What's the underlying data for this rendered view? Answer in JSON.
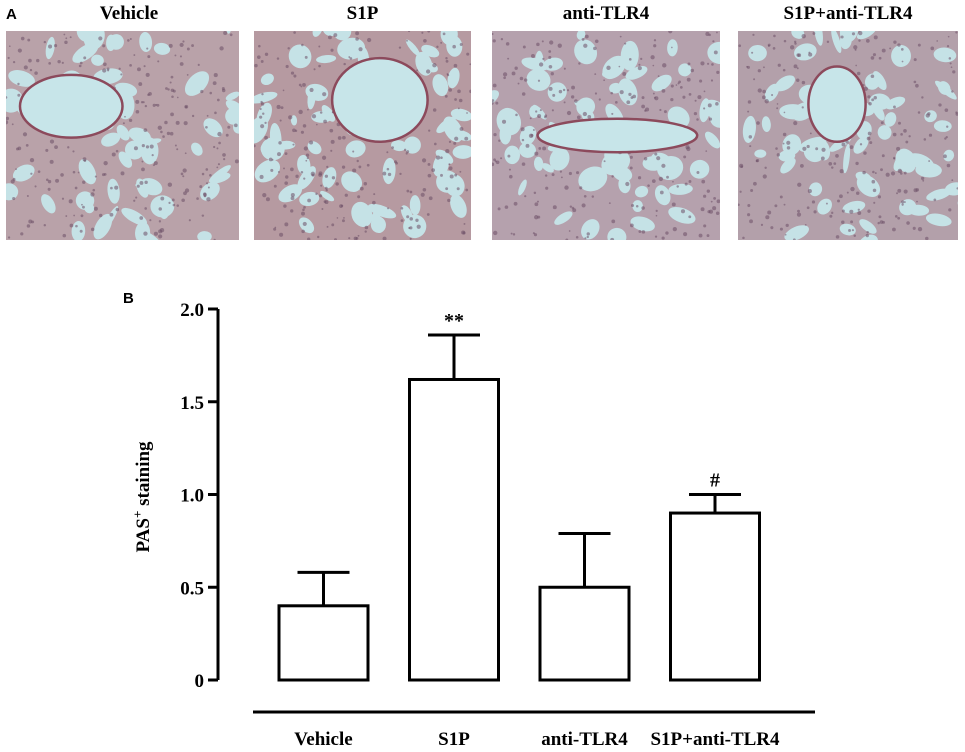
{
  "panel_a": {
    "letter": "A",
    "images": [
      {
        "title": "Vehicle",
        "tint": "#b9a2a9"
      },
      {
        "title": "S1P",
        "tint": "#b69aa1"
      },
      {
        "title": "anti-TLR4",
        "tint": "#b5a1ad"
      },
      {
        "title": "S1P+anti-TLR4",
        "tint": "#b3a0aa"
      }
    ]
  },
  "panel_b": {
    "letter": "B"
  },
  "chart_data": {
    "type": "bar",
    "categories": [
      "Vehicle",
      "S1P",
      "anti-TLR4",
      "S1P+anti-TLR4"
    ],
    "values": [
      0.4,
      1.62,
      0.5,
      0.9
    ],
    "errors": [
      0.18,
      0.24,
      0.29,
      0.1
    ],
    "annotations": [
      "",
      "**",
      "",
      "#"
    ],
    "ylabel_main": "PAS",
    "ylabel_sup": "+",
    "ylabel_rest": " staining",
    "ylim": [
      0,
      2.0
    ],
    "yticks": [
      0,
      0.5,
      1.0,
      1.5,
      2.0
    ],
    "ytick_labels": [
      "0",
      "0.5",
      "1.0",
      "1.5",
      "2.0"
    ],
    "grid": false,
    "bar_fill": "#ffffff",
    "bar_stroke": "#000000"
  }
}
